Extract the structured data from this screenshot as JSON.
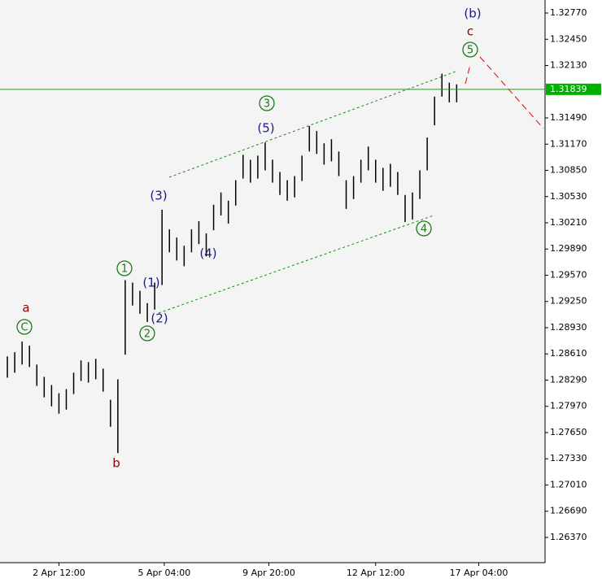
{
  "chart_data": {
    "type": "range-bar",
    "color": "#000000",
    "x": [
      1,
      2,
      3,
      4,
      5,
      6,
      7,
      8,
      9,
      10,
      11,
      12,
      13,
      14,
      15,
      16,
      17,
      18,
      19,
      20,
      21,
      22,
      23,
      24,
      25,
      26,
      27,
      28,
      29,
      30,
      31,
      32,
      33,
      34,
      35,
      36,
      37,
      38,
      39,
      40,
      41,
      42,
      43,
      44,
      45,
      46,
      47,
      48,
      49,
      50,
      51,
      52,
      53,
      54,
      55,
      56,
      57,
      58,
      59,
      60,
      61,
      62
    ],
    "high": [
      1.2858,
      1.2863,
      1.2876,
      1.2871,
      1.2848,
      1.2833,
      1.2823,
      1.2813,
      1.2818,
      1.2838,
      1.2853,
      1.2851,
      1.2855,
      1.2843,
      1.2805,
      1.283,
      1.2951,
      1.2948,
      1.2938,
      1.2923,
      1.2948,
      1.3037,
      1.3013,
      1.3003,
      1.2993,
      1.3013,
      1.3023,
      1.3008,
      1.3043,
      1.3058,
      1.3048,
      1.3073,
      1.3104,
      1.3098,
      1.3103,
      1.3119,
      1.3098,
      1.3083,
      1.3073,
      1.3078,
      1.3103,
      1.3139,
      1.3133,
      1.3118,
      1.3123,
      1.3108,
      1.3073,
      1.3078,
      1.3098,
      1.3114,
      1.3098,
      1.3088,
      1.3093,
      1.3083,
      1.3055,
      1.3058,
      1.3085,
      1.3125,
      1.3175,
      1.3203,
      1.3192,
      1.319
    ],
    "low": [
      1.2832,
      1.2838,
      1.2848,
      1.2845,
      1.2822,
      1.2808,
      1.2797,
      1.2788,
      1.2793,
      1.2812,
      1.2828,
      1.2826,
      1.283,
      1.2815,
      1.2772,
      1.274,
      1.286,
      1.292,
      1.291,
      1.29,
      1.2915,
      1.2945,
      1.2985,
      1.2975,
      1.2968,
      1.2985,
      1.2995,
      1.298,
      1.3012,
      1.303,
      1.302,
      1.3042,
      1.3075,
      1.307,
      1.3075,
      1.3085,
      1.307,
      1.3055,
      1.3048,
      1.3052,
      1.3072,
      1.3108,
      1.3105,
      1.3092,
      1.3096,
      1.3078,
      1.3038,
      1.305,
      1.307,
      1.3085,
      1.307,
      1.306,
      1.3065,
      1.3055,
      1.3022,
      1.3025,
      1.305,
      1.3085,
      1.314,
      1.3175,
      1.3168,
      1.3168
    ],
    "xlim": [
      0,
      74
    ],
    "xticks": [
      {
        "value": 8,
        "label": "2 Apr 12:00"
      },
      {
        "value": 22.3,
        "label": "5 Apr 04:00"
      },
      {
        "value": 36.5,
        "label": "9 Apr 20:00"
      },
      {
        "value": 51,
        "label": "12 Apr 12:00"
      },
      {
        "value": 65,
        "label": "17 Apr 04:00"
      }
    ],
    "ylim": [
      1.26062,
      1.32929
    ],
    "yticks": [
      {
        "value": 1.3277,
        "label": "1.32770"
      },
      {
        "value": 1.3245,
        "label": "1.32450"
      },
      {
        "value": 1.3213,
        "label": "1.32130"
      },
      {
        "value": 1.3149,
        "label": "1.31490"
      },
      {
        "value": 1.3117,
        "label": "1.31170"
      },
      {
        "value": 1.3085,
        "label": "1.30850"
      },
      {
        "value": 1.3053,
        "label": "1.30530"
      },
      {
        "value": 1.3021,
        "label": "1.30210"
      },
      {
        "value": 1.2989,
        "label": "1.29890"
      },
      {
        "value": 1.2957,
        "label": "1.29570"
      },
      {
        "value": 1.2925,
        "label": "1.29250"
      },
      {
        "value": 1.2893,
        "label": "1.28930"
      },
      {
        "value": 1.2861,
        "label": "1.28610"
      },
      {
        "value": 1.2829,
        "label": "1.28290"
      },
      {
        "value": 1.2797,
        "label": "1.27970"
      },
      {
        "value": 1.2765,
        "label": "1.27650"
      },
      {
        "value": 1.2733,
        "label": "1.27330"
      },
      {
        "value": 1.2701,
        "label": "1.27010"
      },
      {
        "value": 1.2669,
        "label": "1.26690"
      },
      {
        "value": 1.2637,
        "label": "1.26370"
      }
    ],
    "price_line": {
      "value": 1.31839,
      "label": "1.31839",
      "color": "#00b000"
    },
    "annotations": [
      {
        "text": "(b)",
        "color": "#1a1a8c",
        "circled": false
      },
      {
        "text": "c",
        "color": "#8b0000",
        "circled": false
      },
      {
        "text": "5",
        "color": "#1a7a1a",
        "circled": true
      },
      {
        "text": "3",
        "color": "#1a7a1a",
        "circled": true
      },
      {
        "text": "(5)",
        "color": "#1a1a8c",
        "circled": false
      },
      {
        "text": "(3)",
        "color": "#1a1a8c",
        "circled": false
      },
      {
        "text": "(4)",
        "color": "#1a1a8c",
        "circled": false
      },
      {
        "text": "1",
        "color": "#1a7a1a",
        "circled": true
      },
      {
        "text": "(1)",
        "color": "#1a1a8c",
        "circled": false
      },
      {
        "text": "(2)",
        "color": "#1a1a8c",
        "circled": false
      },
      {
        "text": "2",
        "color": "#1a7a1a",
        "circled": true
      },
      {
        "text": "a",
        "color": "#8b0000",
        "circled": false
      },
      {
        "text": "C",
        "color": "#1a7a1a",
        "circled": true
      },
      {
        "text": "b",
        "color": "#8b0000",
        "circled": false
      },
      {
        "text": "4",
        "color": "#1a7a1a",
        "circled": true
      }
    ]
  }
}
